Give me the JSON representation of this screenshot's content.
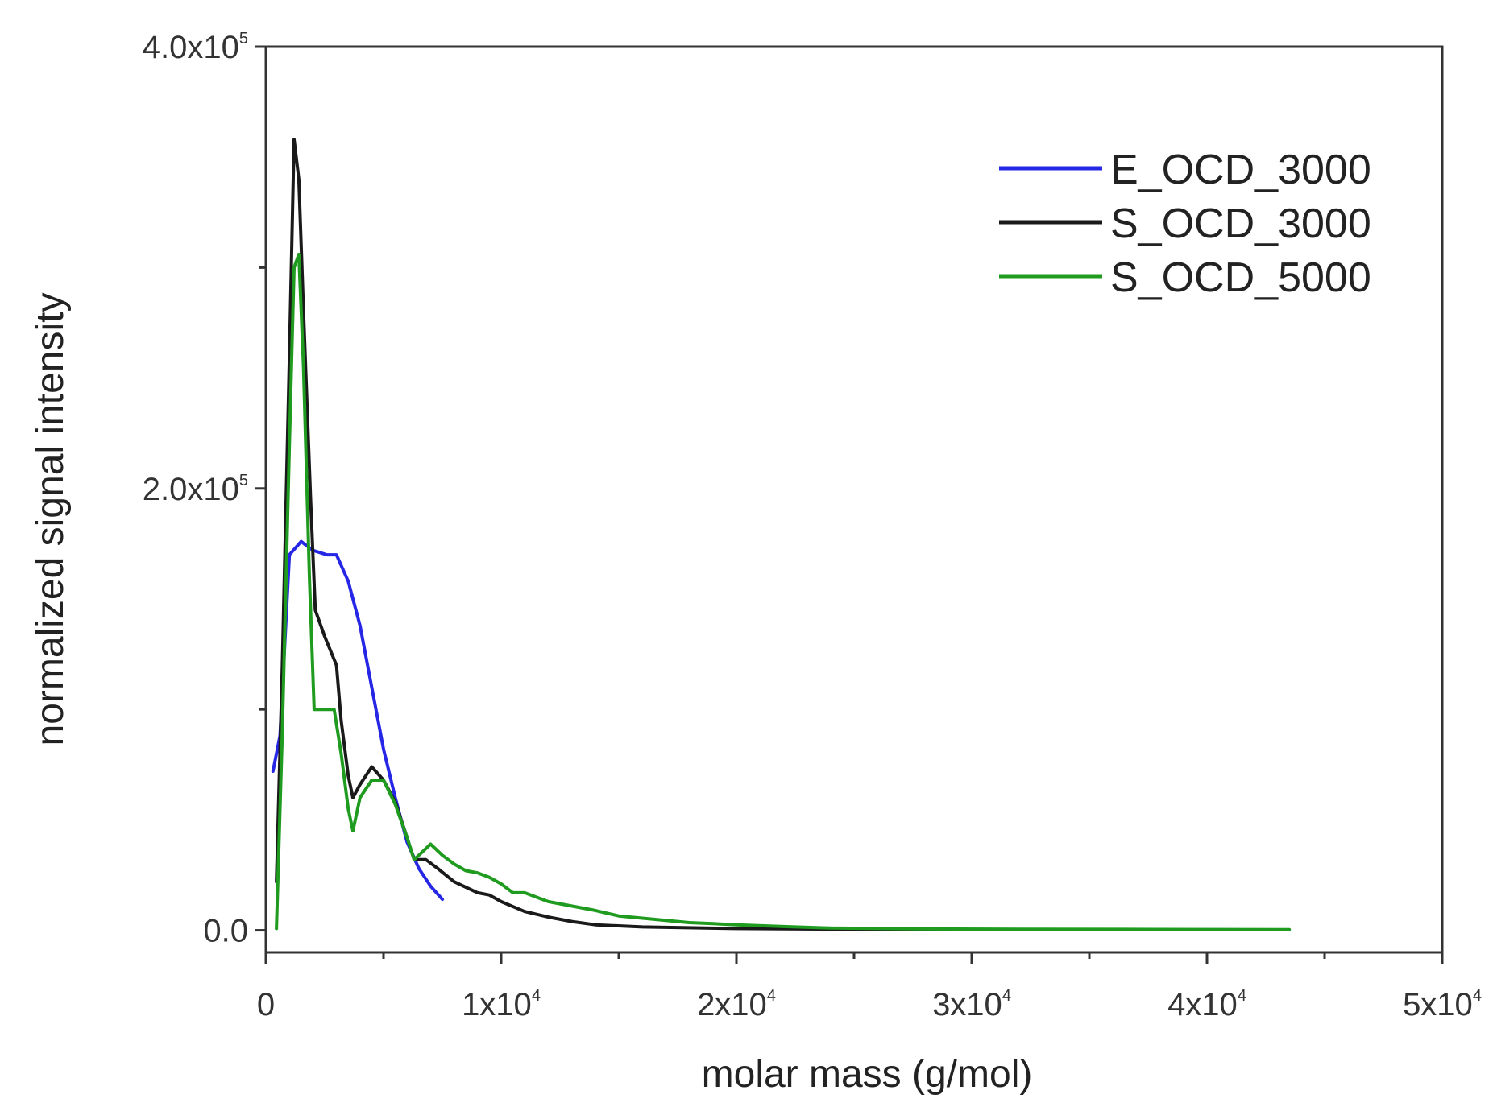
{
  "chart_data": {
    "type": "line",
    "title": "",
    "xlabel": "molar mass (g/mol)",
    "ylabel": "normalized signal intensity",
    "xlim": [
      0,
      50000
    ],
    "ylim": [
      -10000,
      400000
    ],
    "grid": false,
    "legend_position": "top-right",
    "x_ticks": [
      {
        "value": 0,
        "mantissa": "0",
        "exp": ""
      },
      {
        "value": 10000,
        "mantissa": "1x10",
        "exp": "4"
      },
      {
        "value": 20000,
        "mantissa": "2x10",
        "exp": "4"
      },
      {
        "value": 30000,
        "mantissa": "3x10",
        "exp": "4"
      },
      {
        "value": 40000,
        "mantissa": "4x10",
        "exp": "4"
      },
      {
        "value": 50000,
        "mantissa": "5x10",
        "exp": "4"
      }
    ],
    "y_ticks": [
      {
        "value": 0,
        "mantissa": "0.0",
        "exp": ""
      },
      {
        "value": 200000,
        "mantissa": "2.0x10",
        "exp": "5"
      },
      {
        "value": 400000,
        "mantissa": "4.0x10",
        "exp": "5"
      }
    ],
    "x_minor_ticks": [
      5000,
      15000,
      25000,
      35000,
      45000
    ],
    "y_minor_ticks": [
      100000,
      300000
    ],
    "series": [
      {
        "name": "E_OCD_3000",
        "color": "#2626e6",
        "points": [
          [
            300,
            72000
          ],
          [
            600,
            88000
          ],
          [
            1000,
            170000
          ],
          [
            1500,
            176000
          ],
          [
            2000,
            172000
          ],
          [
            2600,
            170000
          ],
          [
            3000,
            170000
          ],
          [
            3500,
            158000
          ],
          [
            4000,
            138000
          ],
          [
            4500,
            110000
          ],
          [
            5000,
            82000
          ],
          [
            5500,
            60000
          ],
          [
            6000,
            40000
          ],
          [
            6500,
            28000
          ],
          [
            7000,
            20000
          ],
          [
            7500,
            14000
          ]
        ]
      },
      {
        "name": "S_OCD_3000",
        "color": "#1a1a1a",
        "points": [
          [
            450,
            22000
          ],
          [
            700,
            120000
          ],
          [
            1000,
            260000
          ],
          [
            1200,
            358000
          ],
          [
            1400,
            340000
          ],
          [
            1600,
            280000
          ],
          [
            1900,
            195000
          ],
          [
            2100,
            145000
          ],
          [
            2500,
            133000
          ],
          [
            3000,
            120000
          ],
          [
            3200,
            95000
          ],
          [
            3500,
            70000
          ],
          [
            3700,
            60000
          ],
          [
            4000,
            66000
          ],
          [
            4500,
            74000
          ],
          [
            5000,
            68000
          ],
          [
            5500,
            58000
          ],
          [
            6000,
            42000
          ],
          [
            6300,
            32000
          ],
          [
            6800,
            32000
          ],
          [
            7300,
            28000
          ],
          [
            8000,
            22000
          ],
          [
            9000,
            17000
          ],
          [
            9500,
            16000
          ],
          [
            10000,
            13000
          ],
          [
            11000,
            8500
          ],
          [
            12000,
            6000
          ],
          [
            13000,
            4000
          ],
          [
            14000,
            2500
          ],
          [
            16000,
            1500
          ],
          [
            20000,
            800
          ],
          [
            25000,
            500
          ],
          [
            28500,
            400
          ],
          [
            32000,
            400
          ]
        ]
      },
      {
        "name": "S_OCD_5000",
        "color": "#1f9b1f",
        "points": [
          [
            450,
            800
          ],
          [
            700,
            90000
          ],
          [
            1000,
            220000
          ],
          [
            1200,
            300000
          ],
          [
            1400,
            306000
          ],
          [
            1600,
            255000
          ],
          [
            1850,
            160000
          ],
          [
            2050,
            100000
          ],
          [
            2500,
            100000
          ],
          [
            2900,
            100000
          ],
          [
            3200,
            80000
          ],
          [
            3500,
            55000
          ],
          [
            3700,
            45000
          ],
          [
            4000,
            60000
          ],
          [
            4500,
            68000
          ],
          [
            5000,
            68000
          ],
          [
            5500,
            57000
          ],
          [
            6000,
            42000
          ],
          [
            6300,
            32000
          ],
          [
            6700,
            36000
          ],
          [
            7000,
            39000
          ],
          [
            7500,
            34000
          ],
          [
            8000,
            30000
          ],
          [
            8500,
            27000
          ],
          [
            9000,
            26000
          ],
          [
            9500,
            24000
          ],
          [
            10000,
            21000
          ],
          [
            10500,
            17000
          ],
          [
            11000,
            17000
          ],
          [
            11500,
            15000
          ],
          [
            12000,
            13000
          ],
          [
            13000,
            11000
          ],
          [
            14000,
            9000
          ],
          [
            15000,
            6500
          ],
          [
            16000,
            5500
          ],
          [
            17000,
            4500
          ],
          [
            18000,
            3500
          ],
          [
            19000,
            3000
          ],
          [
            20000,
            2500
          ],
          [
            22000,
            1700
          ],
          [
            24000,
            1000
          ],
          [
            28000,
            600
          ],
          [
            32000,
            500
          ],
          [
            38000,
            400
          ],
          [
            43500,
            300
          ]
        ]
      }
    ]
  }
}
